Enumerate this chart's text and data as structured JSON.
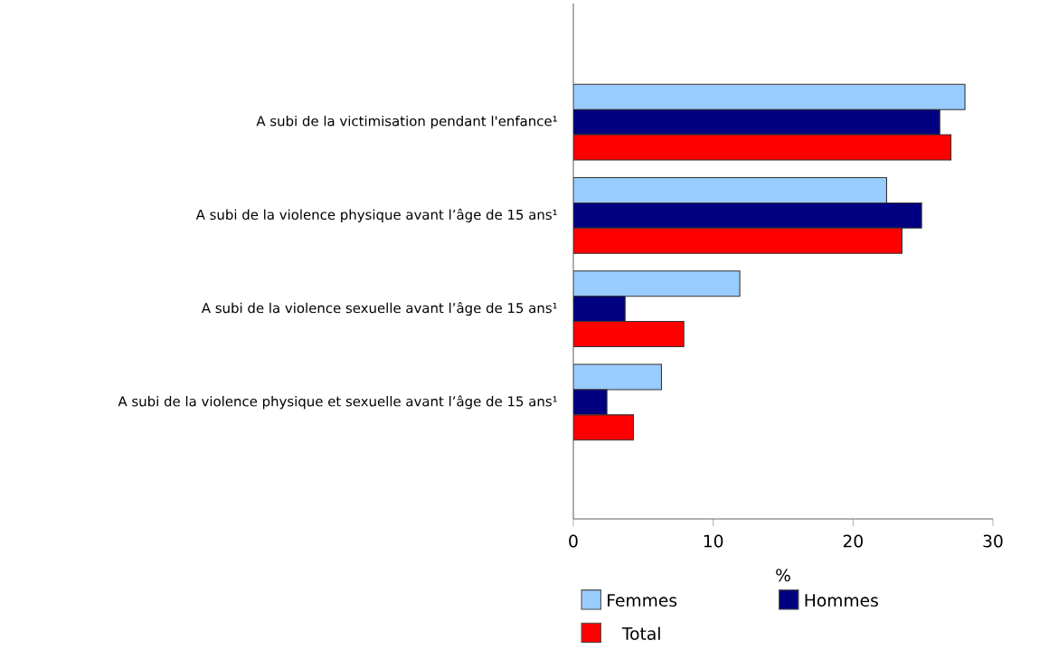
{
  "chart_data": {
    "type": "bar",
    "orientation": "horizontal",
    "xlabel": "%",
    "categories": [
      "A subi de la victimisation pendant l'enfance¹",
      "A subi de la violence physique avant l’âge de 15 ans¹",
      "A subi de la violence sexuelle avant l’âge de 15 ans¹",
      "A subi de la violence physique et sexuelle avant l’âge de 15 ans¹"
    ],
    "series": [
      {
        "name": "Femmes",
        "color": "#99ccff",
        "values": [
          28.0,
          22.4,
          11.9,
          6.3
        ]
      },
      {
        "name": "Hommes",
        "color": "#000080",
        "values": [
          26.2,
          24.9,
          3.7,
          2.4
        ]
      },
      {
        "name": "Total",
        "color": "#ff0000",
        "values": [
          27.0,
          23.5,
          7.9,
          4.3
        ]
      }
    ],
    "xlim": [
      0,
      30
    ],
    "xticks": [
      0,
      10,
      20,
      30
    ],
    "grid": false,
    "legend": "bottom"
  }
}
